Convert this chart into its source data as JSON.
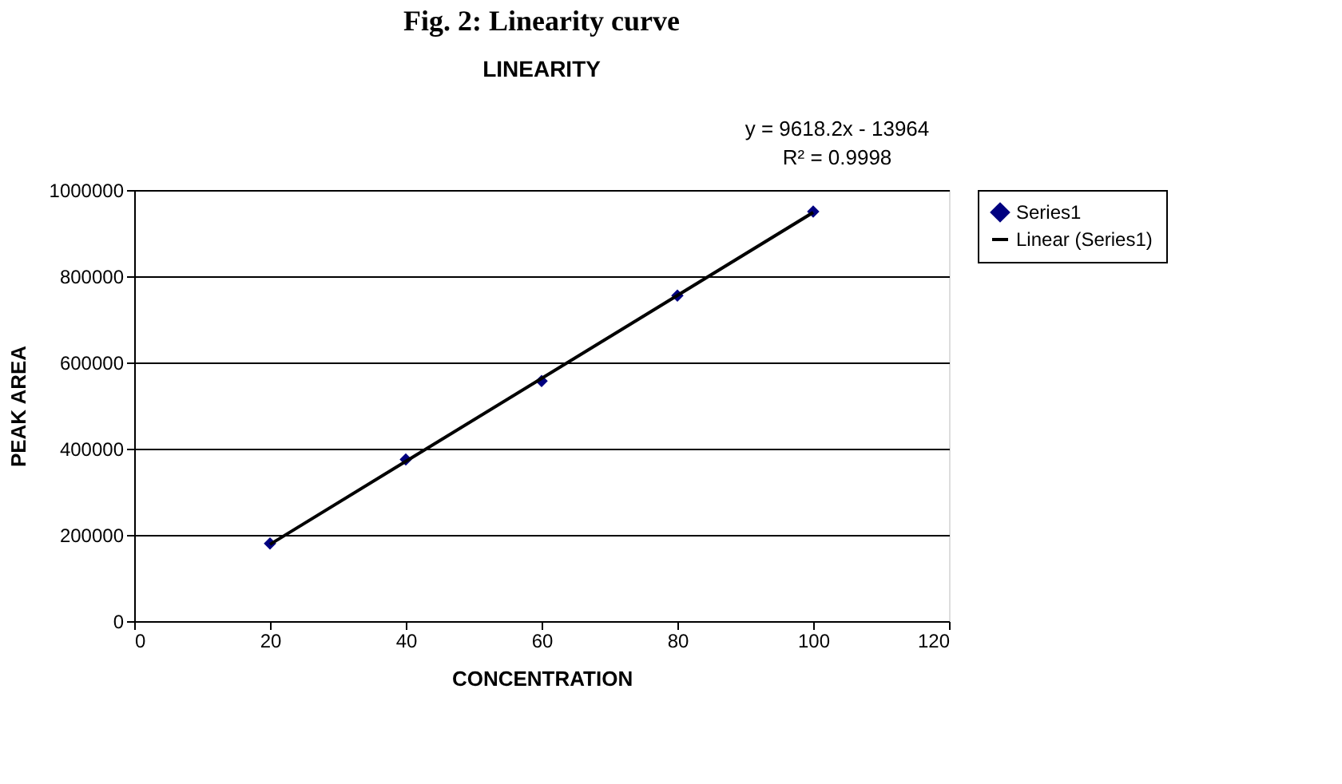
{
  "chart_data": {
    "type": "scatter",
    "title": "Fig. 2: Linearity curve",
    "subtitle": "LINEARITY",
    "xlabel": "CONCENTRATION",
    "ylabel": "PEAK AREA",
    "annotations": [
      "y = 9618.2x - 13964",
      "R² = 0.9998"
    ],
    "series": [
      {
        "name": "Series1",
        "marker": "diamond",
        "color": "#000080",
        "x": [
          20,
          40,
          60,
          80,
          100
        ],
        "values": [
          180000,
          375000,
          557000,
          755000,
          950000
        ]
      },
      {
        "name": "Linear (Series1)",
        "type": "line",
        "marker": "none",
        "line_style": "solid",
        "color": "#000000",
        "x": [
          20,
          100
        ],
        "values": [
          178000,
          948000
        ]
      }
    ],
    "xlim": [
      0,
      120
    ],
    "xticks": [
      0,
      20,
      40,
      60,
      80,
      100,
      120
    ],
    "ylim": [
      0,
      1000000
    ],
    "yticks": [
      0,
      200000,
      400000,
      600000,
      800000,
      1000000
    ],
    "grid": "y",
    "legend": "right"
  }
}
